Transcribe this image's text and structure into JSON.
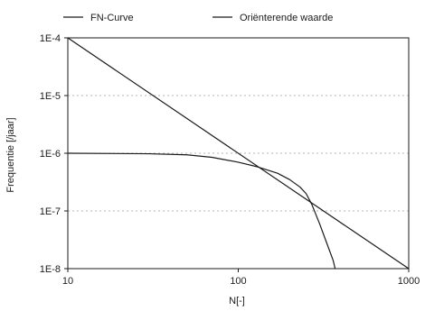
{
  "chart_data": {
    "type": "line",
    "title": "",
    "xlabel": "N[-]",
    "ylabel": "Frequentie [/jaar]",
    "x_scale": "log",
    "y_scale": "log",
    "xlim": [
      10,
      1000
    ],
    "ylim": [
      1e-08,
      0.0001
    ],
    "x_ticks": [
      {
        "value": 10,
        "label": "10"
      },
      {
        "value": 100,
        "label": "100"
      },
      {
        "value": 1000,
        "label": "1000"
      }
    ],
    "y_ticks": [
      {
        "value": 0.0001,
        "label": "1E-4"
      },
      {
        "value": 1e-05,
        "label": "1E-5"
      },
      {
        "value": 1e-06,
        "label": "1E-6"
      },
      {
        "value": 1e-07,
        "label": "1E-7"
      },
      {
        "value": 1e-08,
        "label": "1E-8"
      }
    ],
    "grid": {
      "horizontal": true,
      "vertical": false,
      "style": "dotted"
    },
    "legend": {
      "position": "top"
    },
    "colors": {
      "line": "#1a1a1a",
      "axis": "#1a1a1a",
      "grid": "#9a9a9a"
    },
    "series": [
      {
        "name": "FN-Curve",
        "x": [
          10,
          30,
          50,
          70,
          100,
          130,
          170,
          200,
          230,
          250,
          270,
          300,
          330,
          360,
          370
        ],
        "y": [
          1e-06,
          9.8e-07,
          9.4e-07,
          8.5e-07,
          7e-07,
          5.8e-07,
          4.5e-07,
          3.5e-07,
          2.6e-07,
          2e-07,
          1.3e-07,
          6e-08,
          2.8e-08,
          1.4e-08,
          1e-08
        ]
      },
      {
        "name": "Oriënterende waarde",
        "x": [
          10,
          1000
        ],
        "y": [
          0.0001,
          1e-08
        ]
      }
    ]
  }
}
